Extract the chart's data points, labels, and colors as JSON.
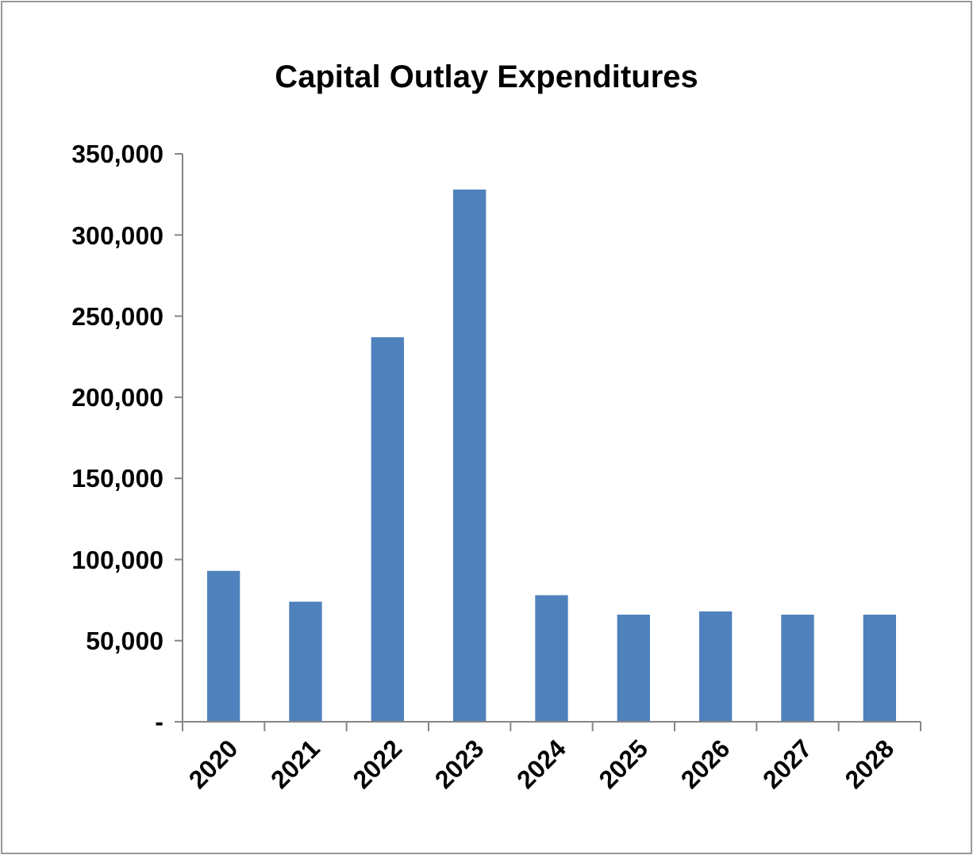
{
  "chart_data": {
    "type": "bar",
    "title": "Capital Outlay Expenditures",
    "categories": [
      "2020",
      "2021",
      "2022",
      "2023",
      "2024",
      "2025",
      "2026",
      "2027",
      "2028"
    ],
    "values": [
      93000,
      74000,
      237000,
      328000,
      78000,
      66000,
      68000,
      66000,
      66000
    ],
    "color": "#4f81bd",
    "ylim": [
      0,
      350000
    ],
    "yticks": [
      {
        "value": 0,
        "label": "-"
      },
      {
        "value": 50000,
        "label": "50,000"
      },
      {
        "value": 100000,
        "label": "100,000"
      },
      {
        "value": 150000,
        "label": "150,000"
      },
      {
        "value": 200000,
        "label": "200,000"
      },
      {
        "value": 250000,
        "label": "250,000"
      },
      {
        "value": 300000,
        "label": "300,000"
      },
      {
        "value": 350000,
        "label": "350,000"
      }
    ],
    "grid": false
  }
}
